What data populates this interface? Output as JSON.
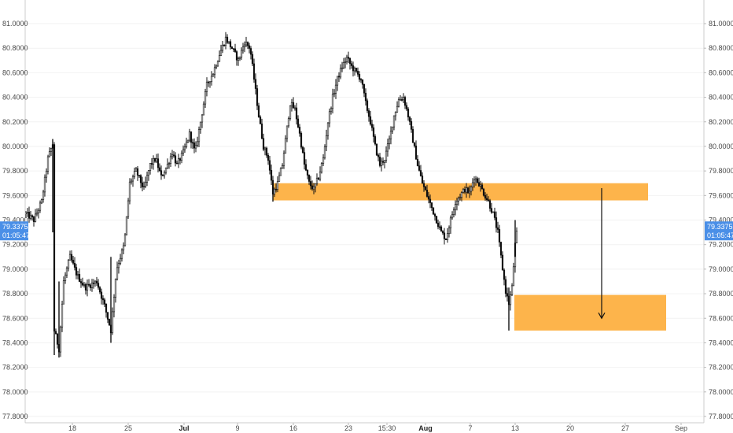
{
  "chart_data": {
    "type": "candlestick",
    "ylim": [
      77.78,
      81.1
    ],
    "y_ticks": [
      "81.0000",
      "80.8000",
      "80.6000",
      "80.4000",
      "80.2000",
      "80.0000",
      "79.8000",
      "79.6000",
      "79.4000",
      "79.2000",
      "79.0000",
      "78.8000",
      "78.6000",
      "78.4000",
      "78.2000",
      "78.0000",
      "77.8000"
    ],
    "x_labels": [
      {
        "label": "18",
        "bold": false
      },
      {
        "label": "25",
        "bold": false
      },
      {
        "label": "Jul",
        "bold": true
      },
      {
        "label": "9",
        "bold": false
      },
      {
        "label": "16",
        "bold": false
      },
      {
        "label": "23",
        "bold": false
      },
      {
        "label": "15:30",
        "bold": false
      },
      {
        "label": "Aug",
        "bold": true
      },
      {
        "label": "7",
        "bold": false
      },
      {
        "label": "13",
        "bold": false
      },
      {
        "label": "20",
        "bold": false
      },
      {
        "label": "27",
        "bold": false
      },
      {
        "label": "Sep",
        "bold": false
      }
    ],
    "price_path": [
      [
        0,
        79.45
      ],
      [
        10,
        79.4
      ],
      [
        20,
        79.55
      ],
      [
        28,
        79.9
      ],
      [
        34,
        80.02
      ],
      [
        36,
        78.5
      ],
      [
        42,
        78.35
      ],
      [
        48,
        78.9
      ],
      [
        56,
        79.1
      ],
      [
        65,
        78.95
      ],
      [
        75,
        78.85
      ],
      [
        90,
        78.9
      ],
      [
        100,
        78.7
      ],
      [
        108,
        78.5
      ],
      [
        115,
        79.0
      ],
      [
        125,
        79.2
      ],
      [
        132,
        79.7
      ],
      [
        140,
        79.8
      ],
      [
        150,
        79.65
      ],
      [
        158,
        79.85
      ],
      [
        165,
        79.9
      ],
      [
        172,
        79.75
      ],
      [
        180,
        79.85
      ],
      [
        186,
        79.95
      ],
      [
        192,
        79.85
      ],
      [
        200,
        79.95
      ],
      [
        208,
        80.1
      ],
      [
        215,
        79.95
      ],
      [
        222,
        80.2
      ],
      [
        230,
        80.5
      ],
      [
        238,
        80.6
      ],
      [
        246,
        80.75
      ],
      [
        254,
        80.88
      ],
      [
        262,
        80.8
      ],
      [
        270,
        80.7
      ],
      [
        278,
        80.85
      ],
      [
        285,
        80.8
      ],
      [
        290,
        80.55
      ],
      [
        296,
        80.25
      ],
      [
        302,
        80.0
      ],
      [
        308,
        79.9
      ],
      [
        314,
        79.62
      ],
      [
        320,
        79.7
      ],
      [
        326,
        79.85
      ],
      [
        330,
        80.05
      ],
      [
        336,
        80.35
      ],
      [
        342,
        80.3
      ],
      [
        348,
        80.1
      ],
      [
        354,
        79.85
      ],
      [
        360,
        79.7
      ],
      [
        366,
        79.65
      ],
      [
        372,
        79.75
      ],
      [
        378,
        79.9
      ],
      [
        384,
        80.2
      ],
      [
        390,
        80.4
      ],
      [
        396,
        80.55
      ],
      [
        402,
        80.65
      ],
      [
        408,
        80.72
      ],
      [
        414,
        80.65
      ],
      [
        420,
        80.6
      ],
      [
        426,
        80.55
      ],
      [
        432,
        80.35
      ],
      [
        438,
        80.2
      ],
      [
        444,
        80.0
      ],
      [
        450,
        79.85
      ],
      [
        456,
        79.9
      ],
      [
        462,
        80.05
      ],
      [
        468,
        80.25
      ],
      [
        474,
        80.38
      ],
      [
        480,
        80.4
      ],
      [
        486,
        80.25
      ],
      [
        492,
        80.05
      ],
      [
        498,
        79.85
      ],
      [
        504,
        79.7
      ],
      [
        510,
        79.6
      ],
      [
        516,
        79.5
      ],
      [
        522,
        79.4
      ],
      [
        528,
        79.3
      ],
      [
        534,
        79.25
      ],
      [
        540,
        79.4
      ],
      [
        546,
        79.55
      ],
      [
        552,
        79.6
      ],
      [
        558,
        79.65
      ],
      [
        564,
        79.62
      ],
      [
        570,
        79.75
      ],
      [
        576,
        79.7
      ],
      [
        582,
        79.62
      ],
      [
        588,
        79.55
      ],
      [
        594,
        79.45
      ],
      [
        600,
        79.3
      ],
      [
        605,
        79.05
      ],
      [
        610,
        78.82
      ],
      [
        614,
        78.72
      ],
      [
        618,
        78.85
      ],
      [
        622,
        79.2
      ],
      [
        625,
        79.33
      ]
    ],
    "zones": [
      {
        "name": "resistance-zone",
        "y_top": 79.7,
        "y_bottom": 79.56,
        "t_start": 315,
        "t_end": 792
      },
      {
        "name": "target-zone",
        "y_top": 78.79,
        "y_bottom": 78.5,
        "t_start": 622,
        "t_end": 815
      }
    ],
    "arrow": {
      "t": 733,
      "y_start": 79.66,
      "y_end": 78.6
    },
    "last_price": {
      "price": "79.3375",
      "value": 79.3375,
      "timer": "01:05:47"
    },
    "colors": {
      "candle": "#111111",
      "zone": "#fdb44b",
      "badge": "#4a8fe7",
      "grid": "#f2f2f2",
      "axis": "#cccccc"
    }
  }
}
